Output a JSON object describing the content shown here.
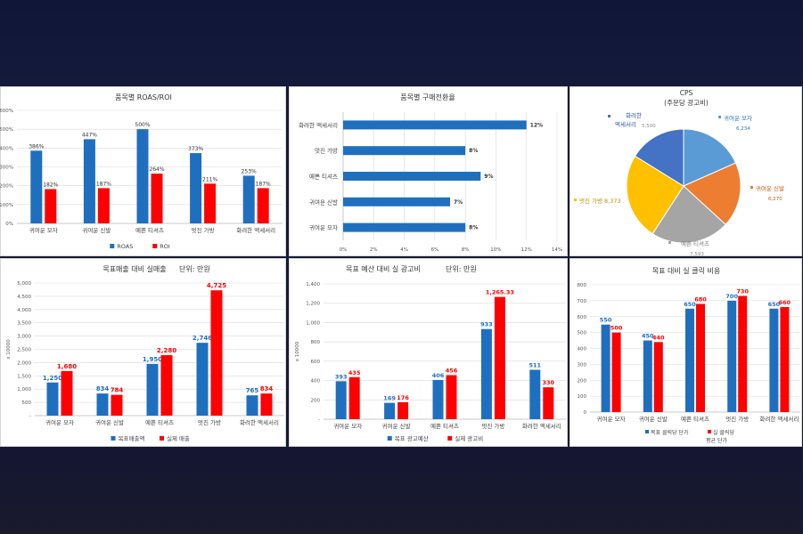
{
  "colors": {
    "blue": "#1f6fbf",
    "red": "#ff0000",
    "pie_blue_light": "#5b9bd5",
    "pie_orange": "#ed7d31",
    "pie_gray": "#a5a5a5",
    "pie_yellow": "#ffc000",
    "pie_blue_dark": "#4472c4"
  },
  "chart_data": [
    {
      "id": "roas",
      "type": "bar",
      "title": "품목별 ROAS/ROI",
      "categories": [
        "귀여운 모자",
        "귀여운 신발",
        "예쁜 티셔츠",
        "멋진 가방",
        "화려한 액세서리"
      ],
      "series": [
        {
          "name": "ROAS",
          "values": [
            386,
            447,
            500,
            373,
            253
          ],
          "labels": [
            "386%",
            "447%",
            "500%",
            "373%",
            "253%"
          ]
        },
        {
          "name": "ROI",
          "values": [
            182,
            187,
            264,
            211,
            187
          ],
          "labels": [
            "182%",
            "187%",
            "264%",
            "211%",
            "187%"
          ]
        }
      ],
      "ylim": [
        0,
        600
      ],
      "yticks": [
        0,
        100,
        200,
        300,
        400,
        500,
        600
      ],
      "ytick_labels": [
        "0%",
        "100%",
        "200%",
        "300%",
        "400%",
        "500%",
        "600%"
      ],
      "legend": "bottom"
    },
    {
      "id": "conversion",
      "type": "bar",
      "orientation": "horizontal",
      "title": "품목별 구매전환율",
      "categories": [
        "화려한 액세서리",
        "멋진 가방",
        "예쁜 티셔츠",
        "귀여운 신발",
        "귀여운 모자"
      ],
      "values": [
        12,
        8,
        9,
        7,
        8
      ],
      "labels": [
        "12%",
        "8%",
        "9%",
        "7%",
        "8%"
      ],
      "xlim": [
        0,
        14
      ],
      "xticks": [
        0,
        2,
        4,
        6,
        8,
        10,
        12,
        14
      ],
      "xtick_labels": [
        "0%",
        "2%",
        "4%",
        "6%",
        "8%",
        "10%",
        "12%",
        "14%"
      ]
    },
    {
      "id": "cps",
      "type": "pie",
      "title": "CPS",
      "subtitle": "(주문당 광고비)",
      "slices": [
        {
          "name": "귀여운 모자",
          "value": 6234,
          "label": "6,234"
        },
        {
          "name": "귀여운 신발",
          "value": 6270,
          "label": "6,270"
        },
        {
          "name": "예쁜 티셔츠",
          "value": 7593,
          "label": "7,593"
        },
        {
          "name": "멋진 가방",
          "value": 8373,
          "label": "8,373"
        },
        {
          "name": "화려한 액세서리",
          "value": 5500,
          "label": "5,500"
        }
      ]
    },
    {
      "id": "sales",
      "type": "bar",
      "title": "목표매출 대비 실매출",
      "title_unit": "단위: 만원",
      "ylabel": "x 10000",
      "categories": [
        "귀여운 모자",
        "귀여운 신발",
        "예쁜 티셔츠",
        "멋진 가방",
        "화려한 액세서리"
      ],
      "series": [
        {
          "name": "목표매출액",
          "values": [
            1250,
            834,
            1950,
            2746,
            765
          ],
          "labels": [
            "1,250",
            "834",
            "1,950",
            "2,746",
            "765"
          ]
        },
        {
          "name": "실제 매출",
          "values": [
            1680,
            784,
            2280,
            4725,
            834
          ],
          "labels": [
            "1,680",
            "784",
            "2,280",
            "4,725",
            "834"
          ]
        }
      ],
      "ylim": [
        0,
        5000
      ],
      "yticks": [
        0,
        500,
        1000,
        1500,
        2000,
        2500,
        3000,
        3500,
        4000,
        4500,
        5000
      ],
      "ytick_labels": [
        "-",
        "500",
        "1,000",
        "1,500",
        "2,000",
        "2,500",
        "3,000",
        "3,500",
        "4,000",
        "4,500",
        "5,000"
      ],
      "legend": "bottom"
    },
    {
      "id": "adspend",
      "type": "bar",
      "title": "목표 예산 대비 실 광고비",
      "title_unit": "단위: 만원",
      "ylabel": "x 10000",
      "categories": [
        "귀여운 모자",
        "귀여운 신발",
        "예쁜 티셔츠",
        "멋진 가방",
        "화려한 액세서리"
      ],
      "series": [
        {
          "name": "목표 광고예산",
          "values": [
            393,
            169,
            406,
            933,
            511
          ],
          "labels": [
            "393",
            "169",
            "406",
            "933",
            "511"
          ]
        },
        {
          "name": "실제 광고비",
          "values": [
            435,
            176,
            456,
            1265.33,
            330
          ],
          "labels": [
            "435",
            "176",
            "456",
            "1,265.33",
            "330"
          ]
        }
      ],
      "ylim": [
        0,
        1400
      ],
      "yticks": [
        0,
        200,
        400,
        600,
        800,
        1000,
        1200,
        1400
      ],
      "ytick_labels": [
        "-",
        "200",
        "400",
        "600",
        "800",
        "1,000",
        "1,200",
        "1,400"
      ],
      "legend": "bottom"
    },
    {
      "id": "cpc",
      "type": "bar",
      "title": "목표 대비 실 클릭 비용",
      "categories": [
        "귀여운 모자",
        "귀여운 신발",
        "예쁜 티셔츠",
        "멋진 가방",
        "화려한 액세서리"
      ],
      "series": [
        {
          "name": "목표 클릭당 단가",
          "values": [
            550,
            450,
            650,
            700,
            650
          ],
          "labels": [
            "550",
            "450",
            "650",
            "700",
            "650"
          ]
        },
        {
          "name": "실 클릭당 평균 단가",
          "values": [
            500,
            440,
            680,
            730,
            660
          ],
          "labels": [
            "500",
            "440",
            "680",
            "730",
            "660"
          ]
        }
      ],
      "ylim": [
        0,
        800
      ],
      "yticks": [
        0,
        100,
        200,
        300,
        400,
        500,
        600,
        700,
        800
      ],
      "ytick_labels": [
        "0",
        "100",
        "200",
        "300",
        "400",
        "500",
        "600",
        "700",
        "800"
      ],
      "legend": "bottom"
    }
  ]
}
